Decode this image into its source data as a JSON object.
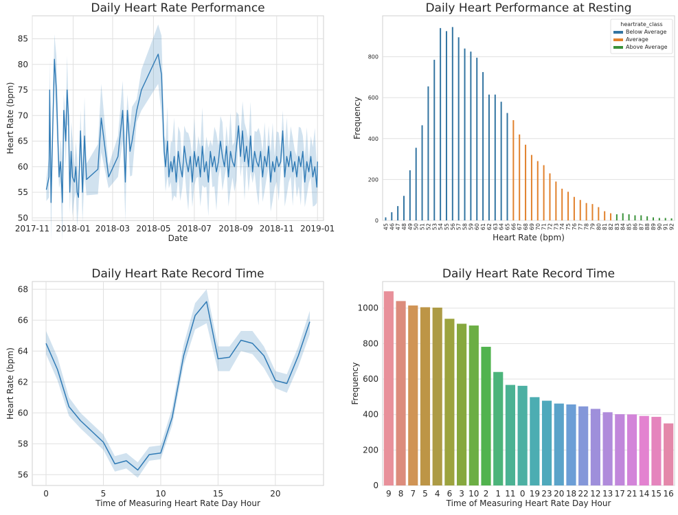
{
  "chart_data": [
    {
      "type": "line",
      "title": "Daily Heart Rate Performance",
      "xlabel": "Date",
      "ylabel": "Heart Rate (bpm)",
      "xticks": [
        "2017-11",
        "2018-01",
        "2018-03",
        "2018-05",
        "2018-07",
        "2018-09",
        "2018-11",
        "2019-01"
      ],
      "xlim": [
        "2017-11-01",
        "2019-01-10"
      ],
      "ylim": [
        49.5,
        89.5
      ],
      "yticks": [
        50,
        55,
        60,
        65,
        70,
        75,
        80,
        85
      ],
      "grid": true,
      "confidence_band": true,
      "color": "#2f7ab5",
      "series": [
        {
          "x": [
            "2017-11-22",
            "2017-11-26",
            "2017-11-27",
            "2017-11-29",
            "2017-12-02",
            "2017-12-04",
            "2017-12-07",
            "2017-12-11",
            "2017-12-13",
            "2017-12-14",
            "2017-12-16",
            "2017-12-18",
            "2017-12-21",
            "2017-12-23",
            "2017-12-25",
            "2017-12-27",
            "2017-12-29",
            "2017-12-31",
            "2018-01-03",
            "2018-01-05",
            "2018-01-07",
            "2018-01-09",
            "2018-01-12",
            "2018-01-15",
            "2018-01-18",
            "2018-01-21",
            "2018-02-07",
            "2018-02-12",
            "2018-02-23",
            "2018-03-09",
            "2018-03-16",
            "2018-03-20",
            "2018-03-23",
            "2018-03-27",
            "2018-03-30",
            "2018-04-06",
            "2018-04-13",
            "2018-05-08",
            "2018-05-13",
            "2018-05-17",
            "2018-05-19",
            "2018-05-22",
            "2018-05-24",
            "2018-05-27",
            "2018-05-29",
            "2018-06-01",
            "2018-06-04",
            "2018-06-07",
            "2018-06-10",
            "2018-06-13",
            "2018-06-16",
            "2018-06-19",
            "2018-06-22",
            "2018-06-25",
            "2018-06-28",
            "2018-07-01",
            "2018-07-04",
            "2018-07-07",
            "2018-07-10",
            "2018-07-13",
            "2018-07-16",
            "2018-07-19",
            "2018-07-22",
            "2018-07-25",
            "2018-07-28",
            "2018-07-31",
            "2018-08-03",
            "2018-08-06",
            "2018-08-09",
            "2018-08-12",
            "2018-08-15",
            "2018-08-18",
            "2018-08-21",
            "2018-08-24",
            "2018-08-27",
            "2018-08-30",
            "2018-09-02",
            "2018-09-05",
            "2018-09-08",
            "2018-09-11",
            "2018-09-14",
            "2018-09-17",
            "2018-09-20",
            "2018-09-23",
            "2018-09-26",
            "2018-09-29",
            "2018-10-02",
            "2018-10-05",
            "2018-10-08",
            "2018-10-11",
            "2018-10-14",
            "2018-10-17",
            "2018-10-20",
            "2018-10-23",
            "2018-10-26",
            "2018-10-29",
            "2018-11-01",
            "2018-11-04",
            "2018-11-07",
            "2018-11-10",
            "2018-11-13",
            "2018-11-16",
            "2018-11-19",
            "2018-11-22",
            "2018-11-25",
            "2018-11-28",
            "2018-12-01",
            "2018-12-04",
            "2018-12-07",
            "2018-12-10",
            "2018-12-13",
            "2018-12-16",
            "2018-12-19",
            "2018-12-22",
            "2018-12-25",
            "2018-12-28",
            "2018-12-31",
            "2019-01-01"
          ],
          "values": [
            55.5,
            58,
            75,
            53,
            70,
            81,
            75,
            58,
            61,
            59,
            53,
            71,
            65,
            75,
            70,
            55,
            63,
            58,
            57,
            60,
            55,
            54,
            67,
            55,
            66,
            57.5,
            59.5,
            69.5,
            58,
            62,
            71,
            57,
            71,
            63,
            65,
            71,
            75,
            82,
            78,
            63,
            60,
            65,
            58,
            61,
            59,
            62,
            57,
            63,
            60,
            58,
            64,
            61,
            59,
            62,
            57,
            63,
            60,
            62,
            58,
            64,
            59,
            61,
            57,
            63,
            60,
            62,
            59,
            61,
            65,
            62,
            60,
            64,
            58,
            63,
            61,
            60,
            64,
            68,
            62,
            67,
            61,
            64,
            60,
            66,
            59,
            63,
            61,
            60,
            63,
            58,
            62,
            60,
            64,
            57,
            61,
            59,
            62,
            60,
            61,
            67,
            58,
            62,
            60,
            63,
            59,
            61,
            58,
            62,
            60,
            63,
            57,
            61,
            59,
            62,
            58,
            60,
            56,
            61
          ]
        }
      ]
    },
    {
      "type": "bar",
      "title": "Daily Heart Performance at Resting",
      "xlabel": "Heart Rate (bpm)",
      "ylabel": "Frequency",
      "ylim": [
        0,
        1000
      ],
      "yticks": [
        0,
        200,
        400,
        600,
        800
      ],
      "grid": true,
      "legend": {
        "title": "heartrate_class",
        "position": "top-right",
        "entries": [
          {
            "label": "Below Average",
            "color": "#3274a1"
          },
          {
            "label": "Average",
            "color": "#e1812c"
          },
          {
            "label": "Above Average",
            "color": "#3a923a"
          }
        ]
      },
      "categories": [
        "45",
        "46",
        "47",
        "48",
        "49",
        "50",
        "51",
        "52",
        "53",
        "54",
        "55",
        "56",
        "57",
        "58",
        "59",
        "60",
        "61",
        "62",
        "63",
        "64",
        "65",
        "66",
        "67",
        "68",
        "69",
        "70",
        "71",
        "72",
        "73",
        "74",
        "75",
        "76",
        "77",
        "78",
        "79",
        "80",
        "81",
        "82",
        "83",
        "84",
        "85",
        "86",
        "87",
        "88",
        "89",
        "90",
        "91",
        "92"
      ],
      "values": [
        15,
        40,
        70,
        120,
        245,
        355,
        465,
        655,
        785,
        940,
        925,
        945,
        895,
        840,
        825,
        795,
        725,
        615,
        615,
        580,
        525,
        490,
        420,
        370,
        320,
        290,
        270,
        230,
        190,
        155,
        140,
        115,
        100,
        85,
        80,
        65,
        45,
        35,
        30,
        35,
        30,
        25,
        25,
        20,
        15,
        12,
        12,
        10
      ],
      "classes": [
        "Below Average",
        "Below Average",
        "Below Average",
        "Below Average",
        "Below Average",
        "Below Average",
        "Below Average",
        "Below Average",
        "Below Average",
        "Below Average",
        "Below Average",
        "Below Average",
        "Below Average",
        "Below Average",
        "Below Average",
        "Below Average",
        "Below Average",
        "Below Average",
        "Below Average",
        "Below Average",
        "Below Average",
        "Average",
        "Average",
        "Average",
        "Average",
        "Average",
        "Average",
        "Average",
        "Average",
        "Average",
        "Average",
        "Average",
        "Average",
        "Average",
        "Average",
        "Average",
        "Average",
        "Average",
        "Above Average",
        "Above Average",
        "Above Average",
        "Above Average",
        "Above Average",
        "Above Average",
        "Above Average",
        "Above Average",
        "Above Average",
        "Above Average"
      ]
    },
    {
      "type": "line",
      "title": "Daily Heart Rate Record Time",
      "xlabel": "Time of Measuring Heart Rate Day Hour",
      "ylabel": "Heart Rate (bpm)",
      "xlim": [
        -1.2,
        24.2
      ],
      "ylim": [
        55.3,
        68.5
      ],
      "xticks": [
        0,
        5,
        10,
        15,
        20
      ],
      "yticks": [
        56,
        58,
        60,
        62,
        64,
        66,
        68
      ],
      "grid": true,
      "confidence_band": true,
      "color": "#2f7ab5",
      "series": [
        {
          "x": [
            0,
            1,
            2,
            3,
            4,
            5,
            6,
            7,
            8,
            9,
            10,
            11,
            12,
            13,
            14,
            15,
            16,
            17,
            18,
            19,
            20,
            21,
            22,
            23
          ],
          "values": [
            64.5,
            62.8,
            60.4,
            59.5,
            58.8,
            58.1,
            56.7,
            56.9,
            56.3,
            57.3,
            57.4,
            59.7,
            63.7,
            66.3,
            67.2,
            63.5,
            63.6,
            64.7,
            64.5,
            63.7,
            62.1,
            61.9,
            63.7,
            65.9
          ],
          "lower": [
            63.8,
            62.1,
            59.8,
            59.0,
            58.3,
            57.6,
            56.2,
            56.4,
            55.8,
            56.9,
            57.0,
            59.2,
            63.1,
            65.4,
            65.8,
            62.7,
            62.7,
            64.0,
            63.8,
            62.9,
            61.6,
            61.3,
            63.0,
            65.1
          ],
          "upper": [
            65.3,
            63.6,
            61.0,
            60.0,
            59.3,
            58.6,
            57.2,
            57.4,
            56.8,
            57.8,
            57.9,
            60.3,
            64.4,
            67.1,
            68.0,
            64.3,
            64.3,
            65.3,
            65.3,
            64.3,
            62.7,
            62.5,
            64.3,
            66.6
          ]
        }
      ]
    },
    {
      "type": "bar",
      "title": "Daily Heart Rate Record Time",
      "xlabel": "Time of Measuring Heart Rate Day Hour",
      "ylabel": "Frequency",
      "ylim": [
        0,
        1150
      ],
      "yticks": [
        0,
        200,
        400,
        600,
        800,
        1000
      ],
      "grid": true,
      "categories": [
        "9",
        "8",
        "7",
        "5",
        "4",
        "6",
        "3",
        "10",
        "2",
        "1",
        "11",
        "0",
        "19",
        "23",
        "20",
        "18",
        "22",
        "12",
        "13",
        "17",
        "21",
        "14",
        "15",
        "16"
      ],
      "values": [
        1095,
        1040,
        1015,
        1005,
        1003,
        940,
        912,
        902,
        782,
        640,
        567,
        562,
        498,
        478,
        462,
        457,
        446,
        432,
        413,
        402,
        401,
        392,
        387,
        350
      ],
      "colors": [
        "#e8909a",
        "#dc8c7c",
        "#d09455",
        "#bd9546",
        "#ad9b45",
        "#9ca33e",
        "#86a83e",
        "#6cae44",
        "#51b34e",
        "#4cb47a",
        "#4bb293",
        "#4cb0a3",
        "#4cadb2",
        "#4fa9bc",
        "#5aa3c9",
        "#6c9ed6",
        "#8497d9",
        "#9e8fdb",
        "#b08bdb",
        "#c187db",
        "#d384d9",
        "#e382d0",
        "#e584bd",
        "#e488aa"
      ]
    }
  ]
}
